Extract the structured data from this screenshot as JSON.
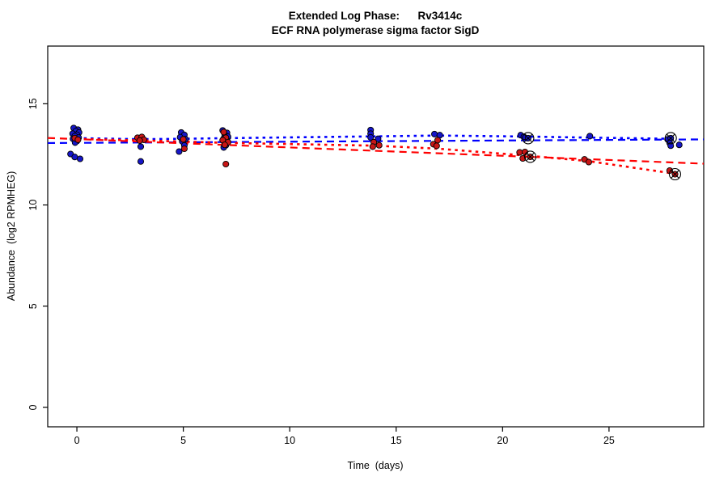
{
  "header": {
    "title_line1": "Extended Log Phase:      Rv3414c",
    "title_line2": "ECF RNA polymerase sigma factor SigD"
  },
  "chart_data": {
    "type": "scatter",
    "title": "Extended Log Phase: Rv3414c — ECF RNA polymerase sigma factor SigD",
    "xlabel": "Time  (days)",
    "ylabel": "Abundance  (log2 RPMHEG)",
    "xlim": [
      -1.37,
      29.45
    ],
    "ylim": [
      -0.96,
      17.85
    ],
    "xticks": [
      0,
      5,
      10,
      15,
      20,
      25
    ],
    "yticks": [
      0,
      5,
      10,
      15
    ],
    "grid": false,
    "legend": "none",
    "colors": {
      "blue_point": "#1616C8",
      "red_point": "#C81616",
      "blue_line": "#0000FF",
      "red_line": "#FF0000",
      "point_edge": "#000000",
      "flag_edge": "#000000",
      "axis": "#000000"
    },
    "series": [
      {
        "name": "blue",
        "color": "#1616C8",
        "points": [
          [
            -0.15,
            13.8
          ],
          [
            0.05,
            13.72
          ],
          [
            -0.05,
            13.65
          ],
          [
            0.1,
            13.58
          ],
          [
            -0.2,
            13.52
          ],
          [
            0.0,
            13.47
          ],
          [
            -0.1,
            13.4
          ],
          [
            0.08,
            13.33
          ],
          [
            -0.18,
            13.27
          ],
          [
            0.02,
            13.18
          ],
          [
            -0.08,
            13.08
          ],
          [
            -0.3,
            12.52
          ],
          [
            -0.1,
            12.37
          ],
          [
            0.15,
            12.28
          ],
          [
            3.0,
            12.88
          ],
          [
            3.0,
            12.15
          ],
          [
            4.9,
            13.58
          ],
          [
            5.05,
            13.46
          ],
          [
            4.85,
            13.35
          ],
          [
            5.1,
            13.25
          ],
          [
            4.95,
            13.14
          ],
          [
            5.05,
            12.94
          ],
          [
            4.8,
            12.64
          ],
          [
            6.85,
            13.68
          ],
          [
            7.05,
            13.56
          ],
          [
            6.95,
            13.46
          ],
          [
            7.1,
            13.37
          ],
          [
            6.9,
            13.28
          ],
          [
            7.05,
            13.18
          ],
          [
            6.95,
            13.07
          ],
          [
            7.0,
            12.95
          ],
          [
            6.9,
            12.84
          ],
          [
            13.8,
            13.7
          ],
          [
            13.8,
            13.52
          ],
          [
            13.8,
            13.34
          ],
          [
            14.15,
            13.27
          ],
          [
            16.8,
            13.5
          ],
          [
            17.05,
            13.45
          ],
          [
            20.85,
            13.45
          ],
          [
            21.0,
            13.37
          ],
          [
            21.2,
            13.3
          ],
          [
            24.1,
            13.4
          ],
          [
            27.75,
            13.24
          ],
          [
            27.9,
            13.3
          ],
          [
            27.85,
            13.06
          ],
          [
            27.9,
            12.93
          ],
          [
            28.3,
            12.97
          ]
        ]
      },
      {
        "name": "red",
        "color": "#C81616",
        "points": [
          [
            -0.1,
            13.3
          ],
          [
            0.05,
            13.22
          ],
          [
            2.85,
            13.32
          ],
          [
            3.05,
            13.36
          ],
          [
            3.15,
            13.22
          ],
          [
            2.95,
            13.18
          ],
          [
            5.0,
            13.24
          ],
          [
            5.05,
            12.78
          ],
          [
            6.9,
            13.6
          ],
          [
            7.0,
            13.32
          ],
          [
            6.85,
            13.2
          ],
          [
            7.1,
            13.1
          ],
          [
            6.95,
            12.97
          ],
          [
            7.0,
            12.02
          ],
          [
            13.95,
            13.1
          ],
          [
            14.2,
            12.95
          ],
          [
            13.9,
            12.88
          ],
          [
            16.95,
            13.2
          ],
          [
            16.75,
            13.0
          ],
          [
            16.9,
            12.92
          ],
          [
            20.8,
            12.6
          ],
          [
            21.05,
            12.62
          ],
          [
            21.3,
            12.38
          ],
          [
            20.95,
            12.3
          ],
          [
            23.85,
            12.25
          ],
          [
            24.05,
            12.12
          ],
          [
            27.85,
            11.7
          ],
          [
            28.1,
            11.52
          ]
        ]
      }
    ],
    "flagged_points": [
      {
        "series": "blue",
        "x": 21.2,
        "y": 13.3
      },
      {
        "series": "red",
        "x": 21.3,
        "y": 12.38
      },
      {
        "series": "blue",
        "x": 27.9,
        "y": 13.3
      },
      {
        "series": "red",
        "x": 28.1,
        "y": 11.52
      }
    ],
    "fit_lines": [
      {
        "name": "blue-linear-fit",
        "color": "#0000FF",
        "style": "dashed",
        "x": [
          -1.37,
          29.45
        ],
        "y": [
          13.06,
          13.24
        ]
      },
      {
        "name": "red-linear-fit",
        "color": "#FF0000",
        "style": "dashed",
        "x": [
          -1.37,
          29.45
        ],
        "y": [
          13.31,
          12.04
        ]
      }
    ],
    "smooth_lines": [
      {
        "name": "blue-smooth-fit",
        "color": "#0000FF",
        "style": "dotted",
        "pts": [
          [
            0,
            13.3
          ],
          [
            3,
            13.25
          ],
          [
            5,
            13.27
          ],
          [
            7,
            13.3
          ],
          [
            14,
            13.39
          ],
          [
            17,
            13.43
          ],
          [
            21,
            13.38
          ],
          [
            24,
            13.33
          ],
          [
            28,
            13.27
          ]
        ]
      },
      {
        "name": "red-smooth-fit",
        "color": "#FF0000",
        "style": "dotted",
        "pts": [
          [
            0,
            13.26
          ],
          [
            3,
            13.19
          ],
          [
            5,
            13.13
          ],
          [
            7,
            13.07
          ],
          [
            14,
            12.93
          ],
          [
            17,
            12.78
          ],
          [
            21,
            12.45
          ],
          [
            24,
            12.17
          ],
          [
            28,
            11.56
          ]
        ]
      }
    ]
  }
}
